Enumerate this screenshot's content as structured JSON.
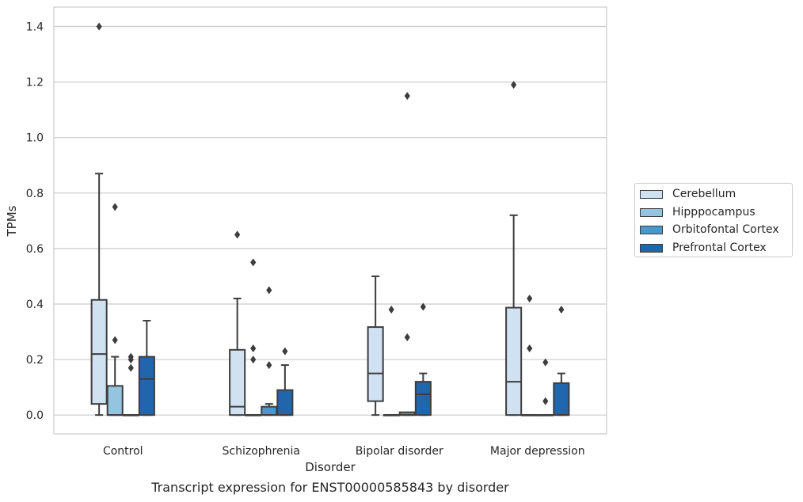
{
  "caption": "Transcript expression for ENST00000585843 by disorder",
  "chart_data": {
    "type": "box",
    "xlabel": "Disorder",
    "ylabel": "TPMs",
    "ylim": [
      -0.068,
      1.47
    ],
    "yticks": [
      "0.0",
      "0.2",
      "0.4",
      "0.6",
      "0.8",
      "1.0",
      "1.2",
      "1.4"
    ],
    "categories": [
      "Control",
      "Schizophrenia",
      "Bipolar disorder",
      "Major depression"
    ],
    "grid": "horizontal",
    "legend_position": "right",
    "series": [
      {
        "name": "Cerebellum",
        "color": "#d0e1f2",
        "boxes": [
          {
            "whislo": 0.0,
            "q1": 0.04,
            "med": 0.22,
            "q3": 0.415,
            "whishi": 0.87,
            "fliers": [
              1.4
            ]
          },
          {
            "whislo": 0.0,
            "q1": 0.0,
            "med": 0.03,
            "q3": 0.235,
            "whishi": 0.42,
            "fliers": [
              0.65
            ]
          },
          {
            "whislo": 0.0,
            "q1": 0.05,
            "med": 0.15,
            "q3": 0.317,
            "whishi": 0.5,
            "fliers": []
          },
          {
            "whislo": 0.0,
            "q1": 0.0,
            "med": 0.12,
            "q3": 0.387,
            "whishi": 0.72,
            "fliers": [
              1.19
            ]
          }
        ]
      },
      {
        "name": "Hipppocampus",
        "color": "#94c4df",
        "boxes": [
          {
            "whislo": 0.0,
            "q1": 0.0,
            "med": 0.0,
            "q3": 0.105,
            "whishi": 0.21,
            "fliers": [
              0.75,
              0.27
            ]
          },
          {
            "whislo": 0.0,
            "q1": 0.0,
            "med": 0.0,
            "q3": 0.0,
            "whishi": 0.0,
            "fliers": [
              0.55,
              0.24,
              0.2
            ]
          },
          {
            "whislo": 0.0,
            "q1": 0.0,
            "med": 0.0,
            "q3": 0.0,
            "whishi": 0.0,
            "fliers": [
              0.38
            ]
          },
          {
            "whislo": 0.0,
            "q1": 0.0,
            "med": 0.0,
            "q3": 0.0,
            "whishi": 0.0,
            "fliers": [
              0.42,
              0.24
            ]
          }
        ]
      },
      {
        "name": "Orbitofontal Cortex",
        "color": "#4a98c9",
        "boxes": [
          {
            "whislo": 0.0,
            "q1": 0.0,
            "med": 0.0,
            "q3": 0.0,
            "whishi": 0.0,
            "fliers": [
              0.21,
              0.2,
              0.17
            ]
          },
          {
            "whislo": 0.0,
            "q1": 0.0,
            "med": 0.0,
            "q3": 0.03,
            "whishi": 0.04,
            "fliers": [
              0.45,
              0.18
            ]
          },
          {
            "whislo": 0.0,
            "q1": 0.0,
            "med": 0.0,
            "q3": 0.01,
            "whishi": 0.01,
            "fliers": [
              1.15,
              0.28
            ]
          },
          {
            "whislo": 0.0,
            "q1": 0.0,
            "med": 0.0,
            "q3": 0.0,
            "whishi": 0.0,
            "fliers": [
              0.19,
              0.05
            ]
          }
        ]
      },
      {
        "name": "Prefrontal Cortex",
        "color": "#2166ac",
        "boxes": [
          {
            "whislo": 0.0,
            "q1": 0.0,
            "med": 0.13,
            "q3": 0.21,
            "whishi": 0.34,
            "fliers": []
          },
          {
            "whislo": 0.0,
            "q1": 0.0,
            "med": 0.0,
            "q3": 0.09,
            "whishi": 0.18,
            "fliers": [
              0.23
            ]
          },
          {
            "whislo": 0.0,
            "q1": 0.0,
            "med": 0.075,
            "q3": 0.12,
            "whishi": 0.15,
            "fliers": [
              0.39
            ]
          },
          {
            "whislo": 0.0,
            "q1": 0.0,
            "med": 0.0,
            "q3": 0.115,
            "whishi": 0.15,
            "fliers": [
              0.38
            ]
          }
        ]
      }
    ]
  }
}
